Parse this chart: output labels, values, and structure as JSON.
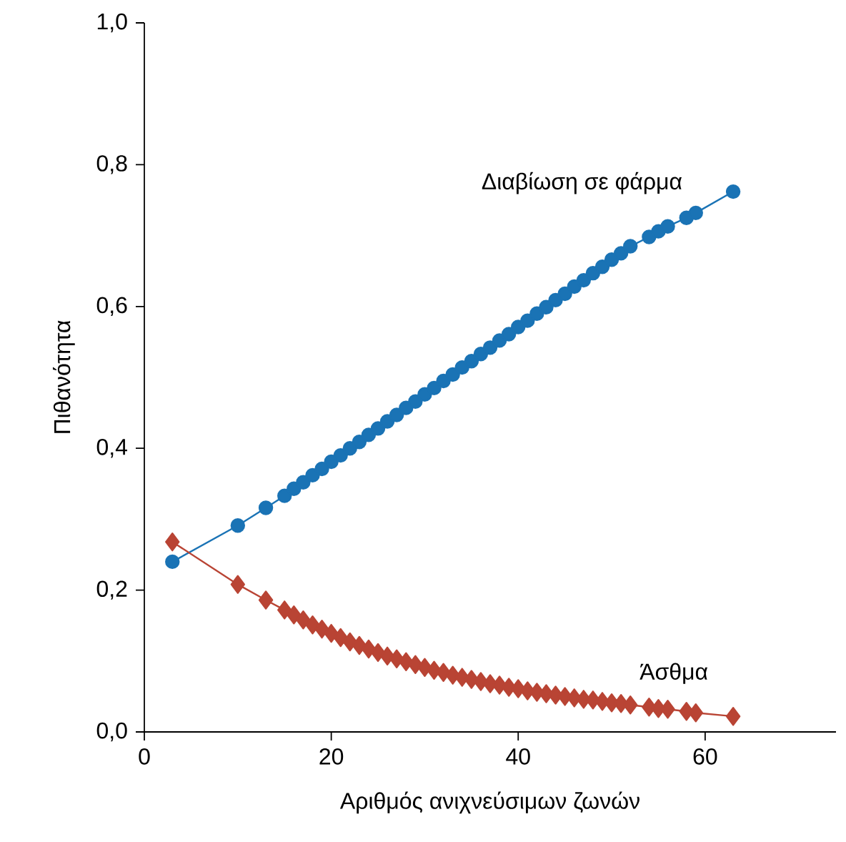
{
  "chart_data": {
    "type": "line",
    "xlabel": "Αριθμός ανιχνεύσιμων ζωνών",
    "ylabel": "Πιθανότητα",
    "xlim": [
      0,
      74
    ],
    "xticks": [
      0,
      20,
      40,
      60
    ],
    "ylim": [
      0,
      1
    ],
    "yticks": [
      {
        "value": 0,
        "label": "0,0"
      },
      {
        "value": 0.2,
        "label": "0,2"
      },
      {
        "value": 0.4,
        "label": "0,4"
      },
      {
        "value": 0.6,
        "label": "0,6"
      },
      {
        "value": 0.8,
        "label": "0,8"
      },
      {
        "value": 1,
        "label": "1,0"
      }
    ],
    "grid": false,
    "legend": false,
    "series": [
      {
        "name": "Διαβίωση σε φάρμα",
        "color": "#1a73b5",
        "marker": "circle",
        "x": [
          3,
          10,
          13,
          15,
          16,
          17,
          18,
          19,
          20,
          21,
          22,
          23,
          24,
          25,
          26,
          27,
          28,
          29,
          30,
          31,
          32,
          33,
          34,
          35,
          36,
          37,
          38,
          39,
          40,
          41,
          42,
          43,
          44,
          45,
          46,
          47,
          48,
          49,
          50,
          51,
          52,
          54,
          55,
          56,
          58,
          59,
          63
        ],
        "values": [
          0.24,
          0.291,
          0.316,
          0.333,
          0.343,
          0.352,
          0.362,
          0.371,
          0.381,
          0.39,
          0.4,
          0.409,
          0.419,
          0.428,
          0.438,
          0.447,
          0.457,
          0.466,
          0.476,
          0.485,
          0.495,
          0.504,
          0.514,
          0.523,
          0.533,
          0.542,
          0.552,
          0.561,
          0.571,
          0.58,
          0.59,
          0.599,
          0.609,
          0.618,
          0.628,
          0.637,
          0.647,
          0.656,
          0.666,
          0.675,
          0.685,
          0.698,
          0.706,
          0.713,
          0.725,
          0.732,
          0.762
        ]
      },
      {
        "name": "Άσθμα",
        "color": "#b94434",
        "marker": "diamond",
        "x": [
          3,
          10,
          13,
          15,
          16,
          17,
          18,
          19,
          20,
          21,
          22,
          23,
          24,
          25,
          26,
          27,
          28,
          29,
          30,
          31,
          32,
          33,
          34,
          35,
          36,
          37,
          38,
          39,
          40,
          41,
          42,
          43,
          44,
          45,
          46,
          47,
          48,
          49,
          50,
          51,
          52,
          54,
          55,
          56,
          58,
          59,
          63
        ],
        "values": [
          0.268,
          0.208,
          0.186,
          0.172,
          0.165,
          0.158,
          0.151,
          0.145,
          0.139,
          0.133,
          0.127,
          0.122,
          0.117,
          0.112,
          0.107,
          0.103,
          0.099,
          0.095,
          0.091,
          0.087,
          0.084,
          0.08,
          0.077,
          0.074,
          0.071,
          0.068,
          0.066,
          0.063,
          0.061,
          0.058,
          0.056,
          0.054,
          0.052,
          0.05,
          0.048,
          0.046,
          0.045,
          0.043,
          0.041,
          0.04,
          0.038,
          0.035,
          0.033,
          0.032,
          0.029,
          0.027,
          0.022
        ]
      }
    ]
  }
}
